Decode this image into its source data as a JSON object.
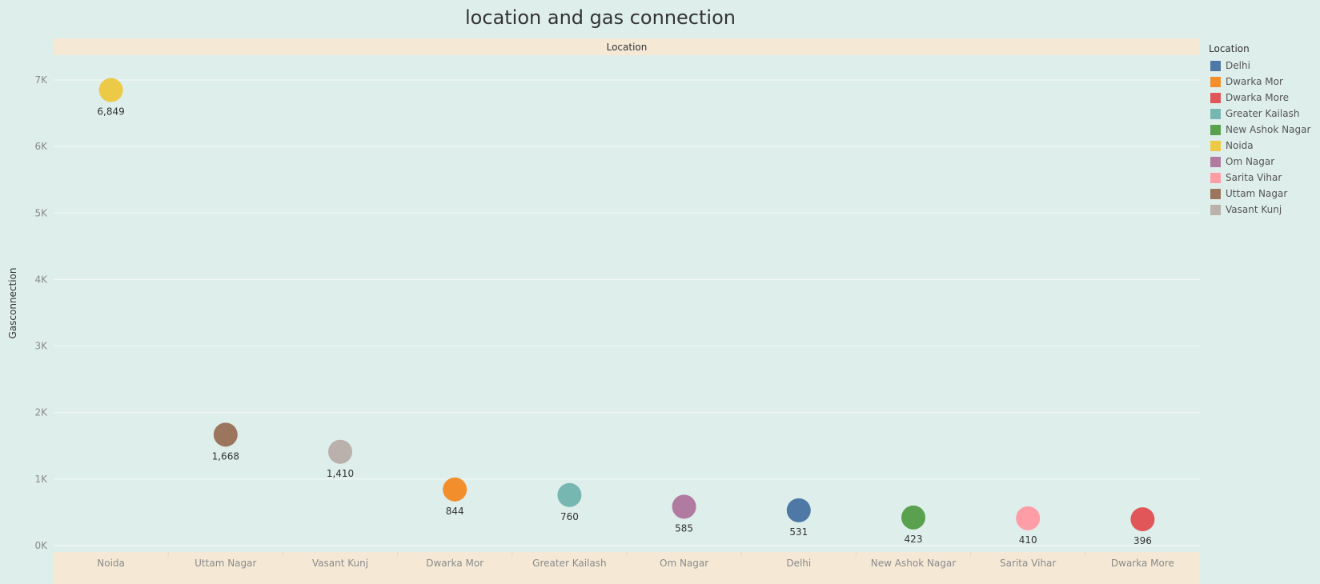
{
  "chart_data": {
    "type": "scatter",
    "title": "location and gas connection",
    "header_label": "Location",
    "xlabel": "",
    "ylabel": "Gasconnection",
    "ylim": [
      0,
      7500
    ],
    "y_ticks": [
      {
        "value": 0,
        "label": "0K"
      },
      {
        "value": 1000,
        "label": "1K"
      },
      {
        "value": 2000,
        "label": "2K"
      },
      {
        "value": 3000,
        "label": "3K"
      },
      {
        "value": 4000,
        "label": "4K"
      },
      {
        "value": 5000,
        "label": "5K"
      },
      {
        "value": 6000,
        "label": "6K"
      },
      {
        "value": 7000,
        "label": "7K"
      }
    ],
    "categories": [
      "Noida",
      "Uttam Nagar",
      "Vasant Kunj",
      "Dwarka Mor",
      "Greater Kailash",
      "Om Nagar",
      "Delhi",
      "New Ashok Nagar",
      "Sarita Vihar",
      "Dwarka More"
    ],
    "values": [
      6849,
      1668,
      1410,
      844,
      760,
      585,
      531,
      423,
      410,
      396
    ],
    "value_labels": [
      "6,849",
      "1,668",
      "1,410",
      "844",
      "760",
      "585",
      "531",
      "423",
      "410",
      "396"
    ],
    "colors": [
      "#edc948",
      "#9c755f",
      "#bab0ac",
      "#f28e2b",
      "#76b7b2",
      "#b07aa1",
      "#4e79a7",
      "#59a14f",
      "#ff9da7",
      "#e15759"
    ],
    "grid": true,
    "legend_position": "right"
  },
  "legend": {
    "title": "Location",
    "items": [
      {
        "label": "Delhi",
        "color": "#4e79a7"
      },
      {
        "label": "Dwarka Mor",
        "color": "#f28e2b"
      },
      {
        "label": "Dwarka More",
        "color": "#e15759"
      },
      {
        "label": "Greater Kailash",
        "color": "#76b7b2"
      },
      {
        "label": "New Ashok Nagar",
        "color": "#59a14f"
      },
      {
        "label": "Noida",
        "color": "#edc948"
      },
      {
        "label": "Om Nagar",
        "color": "#b07aa1"
      },
      {
        "label": "Sarita Vihar",
        "color": "#ff9da7"
      },
      {
        "label": "Uttam Nagar",
        "color": "#9c755f"
      },
      {
        "label": "Vasant Kunj",
        "color": "#bab0ac"
      }
    ]
  }
}
